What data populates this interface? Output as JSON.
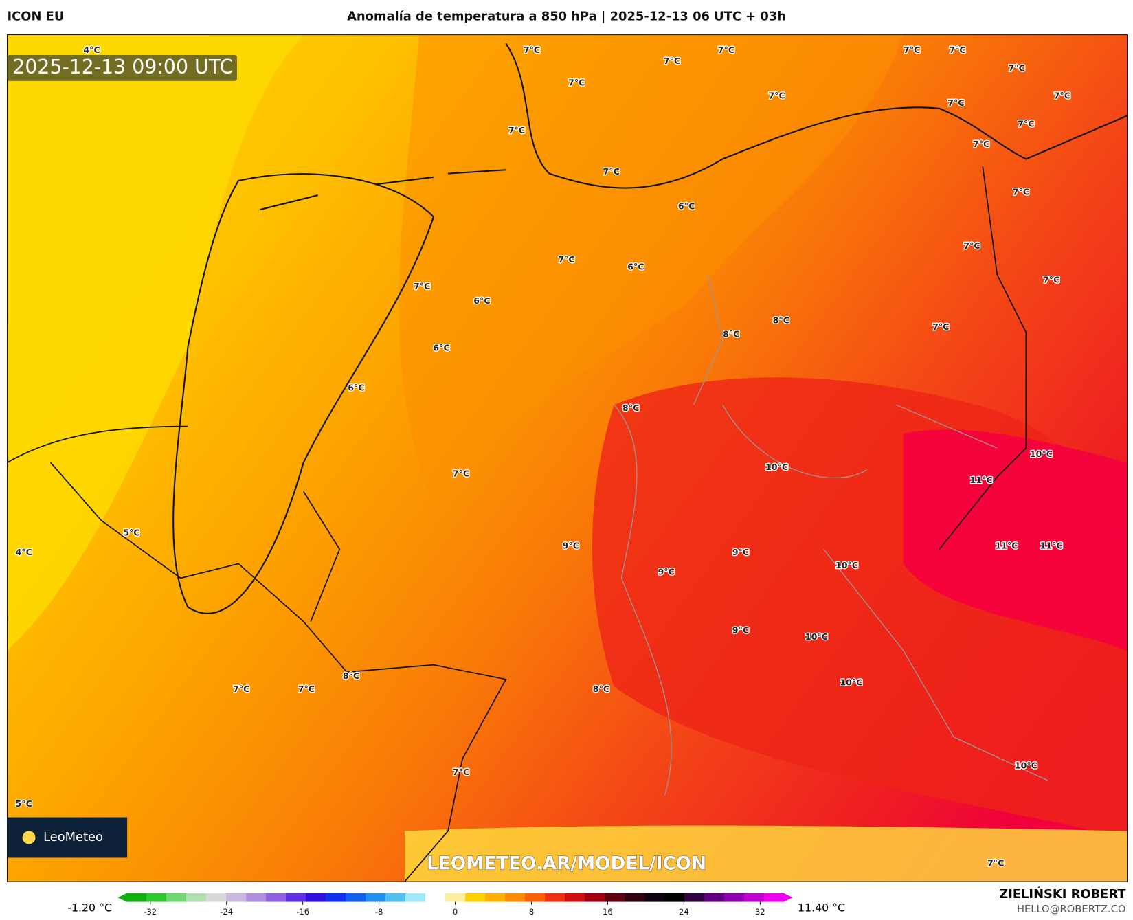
{
  "header": {
    "model": "ICON EU",
    "title": "Anomalía de temperatura a 850 hPa | 2025-12-13 06 UTC + 03h"
  },
  "map": {
    "timestamp": "2025-12-13 09:00 UTC",
    "watermark": "LEOMETEO.AR/MODEL/ICON",
    "logo": "LeoMeteo",
    "labels": [
      "4°C",
      "7°C",
      "7°C",
      "7°C",
      "7°C",
      "7°C",
      "7°C",
      "7°C",
      "7°C",
      "7°C",
      "7°C",
      "7°C",
      "7°C",
      "7°C",
      "7°C",
      "7°C",
      "6°C",
      "7°C",
      "7°C",
      "6°C",
      "7°C",
      "7°C",
      "6°C",
      "8°C",
      "7°C",
      "8°C",
      "6°C",
      "6°C",
      "8°C",
      "10°C",
      "10°C",
      "7°C",
      "11°C",
      "5°C",
      "11°C",
      "11°C",
      "4°C",
      "9°C",
      "9°C",
      "10°C",
      "9°C",
      "9°C",
      "10°C",
      "8°C",
      "10°C",
      "7°C",
      "7°C",
      "8°C",
      "10°C",
      "7°C",
      "5°C",
      "7°C"
    ]
  },
  "colorbar": {
    "min_label": "-1.20 °C",
    "max_label": "11.40 °C",
    "ticks": [
      -32,
      -24,
      -16,
      -8,
      0,
      8,
      16,
      24,
      32
    ]
  },
  "footer": {
    "author": "ZIELIŃSKI ROBERT",
    "email": "HELLO@ROBERTZ.CO"
  }
}
